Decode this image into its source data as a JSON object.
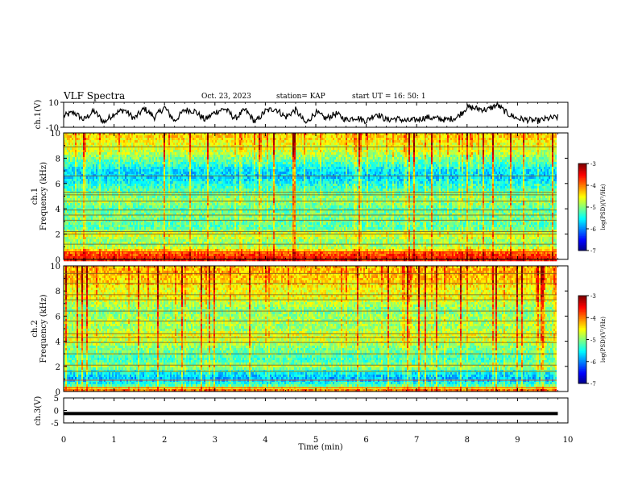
{
  "header": {
    "title": "VLF Spectra",
    "date": "Oct. 23, 2023",
    "station": "station= KAP",
    "start": "start  UT =   16: 50: 1"
  },
  "chart_data": [
    {
      "type": "line",
      "name": "ch1-waveform",
      "ylabel": "ch.1(V)",
      "ylim": [
        -10,
        10
      ],
      "yticks": [
        10,
        -10
      ],
      "xlim": [
        0,
        10
      ],
      "x": [
        0,
        0.2,
        0.4,
        0.6,
        0.8,
        1.0,
        1.2,
        1.4,
        1.6,
        1.8,
        2.0,
        2.2,
        2.4,
        2.6,
        2.8,
        3.0,
        3.2,
        3.4,
        3.6,
        3.8,
        4.0,
        4.2,
        4.4,
        4.6,
        4.8,
        5.0,
        5.2,
        5.4,
        5.6,
        5.8,
        6.0,
        6.2,
        6.4,
        6.6,
        6.8,
        7.0,
        7.2,
        7.4,
        7.6,
        7.8,
        8.0,
        8.2,
        8.4,
        8.6,
        8.8,
        9.0,
        9.2,
        9.4,
        9.6,
        9.8
      ],
      "values": [
        -1,
        2,
        -4,
        3,
        -6,
        1,
        4,
        -3,
        5,
        -2,
        6,
        -5,
        4,
        3,
        -4,
        2,
        5,
        -3,
        4,
        -6,
        3,
        5,
        -2,
        4,
        -7,
        2,
        -3,
        1,
        -4,
        -2,
        -5,
        1,
        -4,
        -3,
        -5,
        -4,
        -2,
        -3,
        -4,
        -2,
        6,
        5,
        4,
        8,
        1,
        -3,
        -4,
        -5,
        -3,
        -2
      ]
    },
    {
      "type": "heatmap",
      "name": "ch1-spectrogram",
      "ylabel_top": "ch.1",
      "ylabel": "Frequency (kHz)",
      "ylim": [
        0,
        10
      ],
      "yticks": [
        0,
        2,
        4,
        6,
        8,
        10
      ],
      "xlim": [
        0,
        10
      ],
      "colorbar": {
        "label": "log(PSD)(V²/Hz)",
        "range": [
          -7,
          -3
        ],
        "ticks": [
          -3,
          -4,
          -5,
          -6,
          -7
        ]
      },
      "freq_profile_kHz": [
        0.0,
        0.5,
        1.0,
        1.5,
        2.0,
        2.5,
        3.0,
        3.5,
        4.0,
        4.5,
        5.0,
        5.5,
        6.0,
        6.5,
        7.0,
        7.5,
        8.0,
        8.5,
        9.0,
        9.5,
        10.0
      ],
      "freq_profile_level": [
        -3.6,
        -3.8,
        -4.9,
        -4.9,
        -4.6,
        -5.2,
        -5.1,
        -5.0,
        -5.2,
        -4.9,
        -5.0,
        -5.2,
        -5.4,
        -5.7,
        -5.6,
        -5.3,
        -5.0,
        -4.7,
        -4.6,
        -4.4,
        -4.3
      ],
      "tone_lines_kHz": [
        0.2,
        0.6,
        1.2,
        2.0,
        2.2,
        3.1,
        3.5,
        3.9,
        4.6,
        5.1,
        5.3,
        6.6,
        8.9
      ]
    },
    {
      "type": "heatmap",
      "name": "ch2-spectrogram",
      "ylabel_top": "ch.2",
      "ylabel": "Frequency (kHz)",
      "ylim": [
        0,
        10
      ],
      "yticks": [
        0,
        2,
        4,
        6,
        8,
        10
      ],
      "xlim": [
        0,
        10
      ],
      "colorbar": {
        "label": "log(PSD)(V²/Hz)",
        "range": [
          -7,
          -3
        ],
        "ticks": [
          -3,
          -4,
          -5,
          -6,
          -7
        ]
      },
      "freq_profile_kHz": [
        0.0,
        0.5,
        1.0,
        1.5,
        2.0,
        2.5,
        3.0,
        3.5,
        4.0,
        4.5,
        5.0,
        5.5,
        6.0,
        6.5,
        7.0,
        7.5,
        8.0,
        8.5,
        9.0,
        9.5,
        10.0
      ],
      "freq_profile_level": [
        -3.7,
        -5.2,
        -5.8,
        -5.5,
        -4.8,
        -5.3,
        -5.1,
        -5.0,
        -4.7,
        -4.6,
        -4.9,
        -4.8,
        -4.9,
        -5.0,
        -4.8,
        -4.5,
        -4.6,
        -4.4,
        -4.3,
        -4.2,
        -4.3
      ],
      "tone_lines_kHz": [
        0.3,
        0.9,
        1.6,
        2.1,
        3.0,
        3.9,
        4.3,
        4.6,
        5.6,
        6.4,
        7.3,
        7.7,
        8.6,
        9.4
      ]
    },
    {
      "type": "line",
      "name": "ch3-waveform",
      "ylabel": "ch.3(V)",
      "ylim": [
        -5,
        5
      ],
      "yticks": [
        5,
        0,
        -5
      ],
      "xlim": [
        0,
        10
      ],
      "level": -1,
      "band": 0.8
    }
  ],
  "xaxis": {
    "label": "Time  (min)",
    "ticks": [
      "0",
      "1",
      "2",
      "3",
      "4",
      "5",
      "6",
      "7",
      "8",
      "9",
      "10"
    ]
  }
}
